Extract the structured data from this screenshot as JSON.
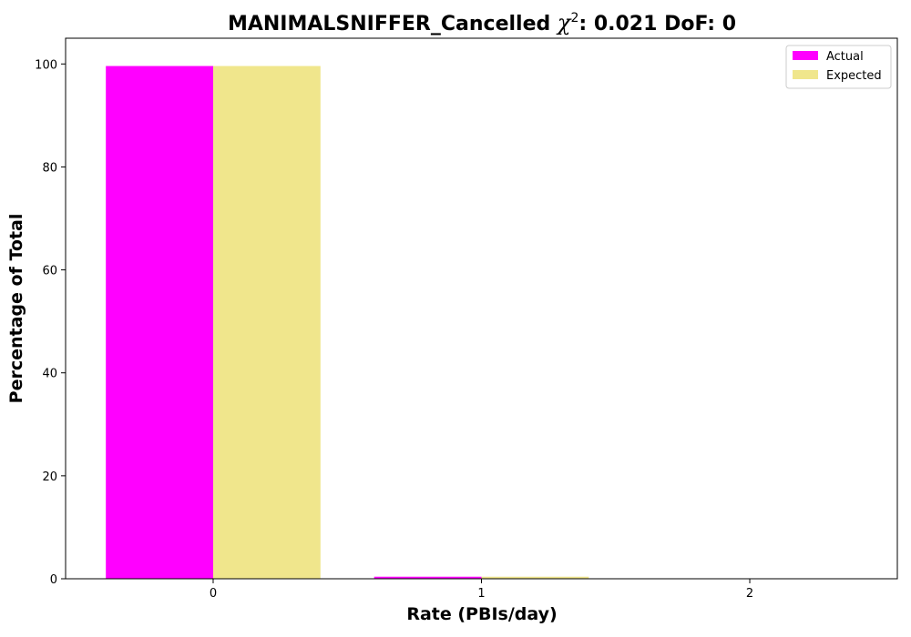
{
  "chart_data": {
    "type": "bar",
    "title_prefix": "MANIMALSNIFFER_Cancelled ",
    "title_chi": "χ",
    "title_sup": "2",
    "title_suffix": ": 0.021 DoF: 0",
    "xlabel": "Rate (PBIs/day)",
    "ylabel": "Percentage of Total",
    "categories": [
      "0",
      "1",
      "2"
    ],
    "x": [
      0,
      1,
      2
    ],
    "xlim": [
      -0.55,
      2.55
    ],
    "ylim": [
      0,
      105
    ],
    "yticks": [
      0,
      20,
      40,
      60,
      80,
      100
    ],
    "bar_width": 0.4,
    "grid": false,
    "legend_position": "top-right",
    "series": [
      {
        "name": "Actual",
        "color": "#ff00ff",
        "values": [
          99.6,
          0.4,
          0.0
        ]
      },
      {
        "name": "Expected",
        "color": "#f0e68c",
        "values": [
          99.6,
          0.4,
          0.0
        ]
      }
    ]
  }
}
